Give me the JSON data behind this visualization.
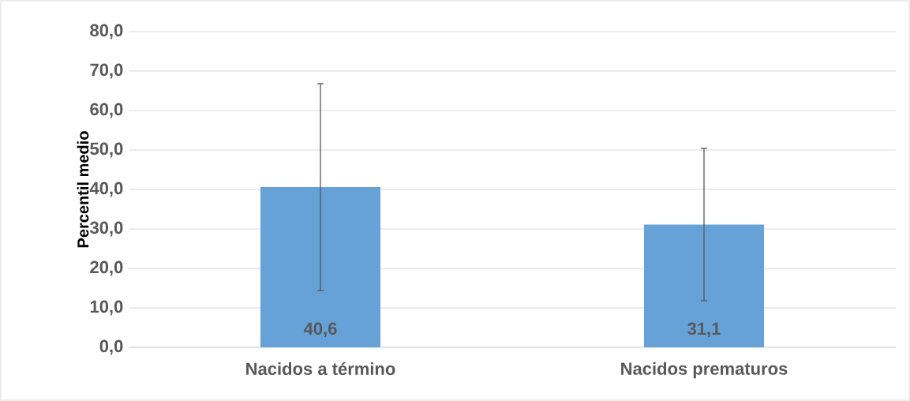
{
  "chart_data": {
    "type": "bar",
    "ylabel": "Percentil medio",
    "categories": [
      "Nacidos a término",
      "Nacidos prematuros"
    ],
    "values": [
      40.6,
      31.1
    ],
    "errors": [
      26.2,
      19.3
    ],
    "color": "#66a2d8",
    "value_labels": [
      "40,6",
      "31,1"
    ],
    "ylim": [
      0,
      80
    ],
    "yticks": [
      {
        "value": 0,
        "label": "0,0"
      },
      {
        "value": 10,
        "label": "10,0"
      },
      {
        "value": 20,
        "label": "20,0"
      },
      {
        "value": 30,
        "label": "30,0"
      },
      {
        "value": 40,
        "label": "40,0"
      },
      {
        "value": 50,
        "label": "50,0"
      },
      {
        "value": 60,
        "label": "60,0"
      },
      {
        "value": 70,
        "label": "70,0"
      },
      {
        "value": 80,
        "label": "80,0"
      }
    ],
    "grid": "y"
  }
}
